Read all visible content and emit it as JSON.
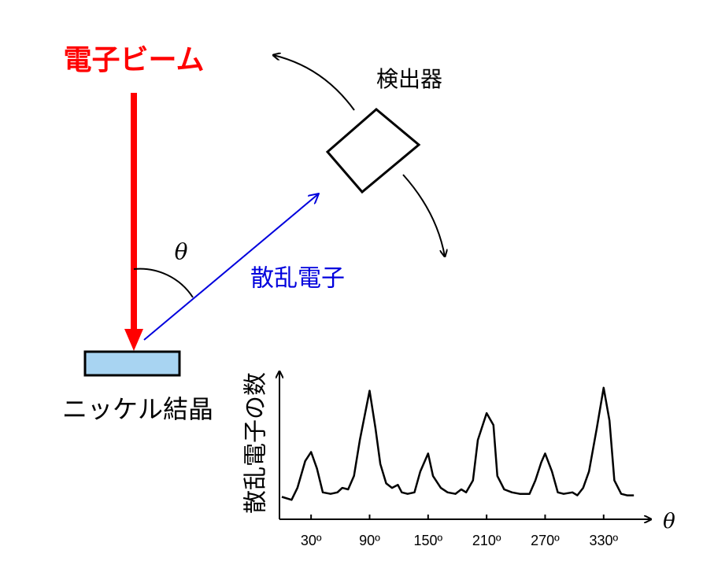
{
  "labels": {
    "beam": "電子ビーム",
    "detector": "検出器",
    "scattered": "散乱電子",
    "angle": "θ",
    "crystal": "ニッケル結晶"
  },
  "chart_data": {
    "type": "line",
    "x_label": "θ",
    "y_label": "散乱電子の数",
    "color": "#000000",
    "x": [
      0,
      10,
      16,
      24,
      30,
      36,
      42,
      50,
      57,
      62,
      68,
      74,
      80,
      90,
      96,
      101,
      107,
      113,
      119,
      123,
      129,
      136,
      142,
      150,
      155,
      163,
      170,
      178,
      184,
      189,
      196,
      201,
      210,
      217,
      221,
      228,
      236,
      244,
      254,
      260,
      266,
      270,
      277,
      283,
      289,
      298,
      303,
      309,
      315,
      323,
      330,
      336,
      341,
      348,
      354,
      361
    ],
    "values": [
      15,
      13,
      21,
      39,
      45,
      34,
      18,
      17,
      18,
      21,
      20,
      29,
      53,
      86,
      61,
      37,
      24,
      21,
      23,
      18,
      17,
      18,
      32,
      44,
      29,
      21,
      18,
      17,
      20,
      18,
      26,
      53,
      71,
      63,
      29,
      20,
      18,
      17,
      17,
      26,
      38,
      44,
      32,
      18,
      17,
      18,
      16,
      21,
      32,
      61,
      88,
      66,
      26,
      17,
      16,
      16
    ],
    "xlim": [
      0,
      377
    ],
    "ylim": [
      0,
      100
    ],
    "xticks": [
      {
        "value": 30,
        "label": "30º"
      },
      {
        "value": 90,
        "label": "90º"
      },
      {
        "value": 150,
        "label": "150º"
      },
      {
        "value": 210,
        "label": "210º"
      },
      {
        "value": 270,
        "label": "270º"
      },
      {
        "value": 330,
        "label": "330º"
      }
    ]
  }
}
